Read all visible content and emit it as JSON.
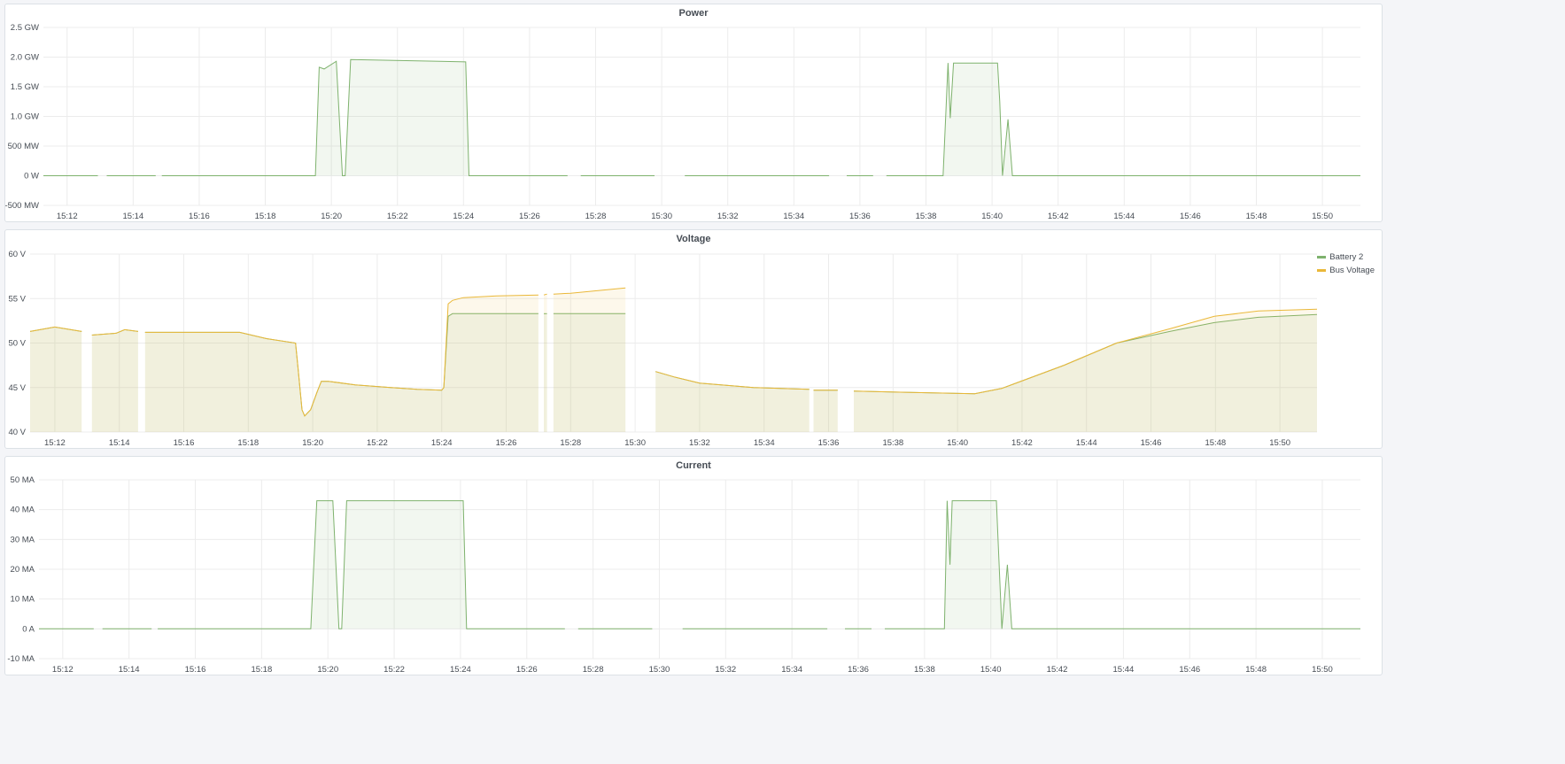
{
  "colors": {
    "green": "#7eb26d",
    "yellow": "#eab839"
  },
  "chart_data": [
    {
      "type": "area",
      "title": "Power",
      "yunit": "GW",
      "yticks": [
        "2.5 GW",
        "2.0 GW",
        "1.5 GW",
        "1.0 GW",
        "500 MW",
        "0 W",
        "-500 MW"
      ],
      "ytick_values": [
        2.5,
        2.0,
        1.5,
        1.0,
        0.5,
        0,
        -0.5
      ],
      "ylim": [
        -0.5,
        2.5
      ],
      "xlim": [
        "15:11:17",
        "15:51:09"
      ],
      "xticks": [
        "15:12",
        "15:14",
        "15:16",
        "15:18",
        "15:20",
        "15:22",
        "15:24",
        "15:26",
        "15:28",
        "15:30",
        "15:32",
        "15:34",
        "15:36",
        "15:38",
        "15:40",
        "15:42",
        "15:44",
        "15:46",
        "15:48",
        "15:50"
      ],
      "grid": true,
      "series": [
        {
          "color": "#7eb26d",
          "points": [
            [
              "15:11:17",
              0
            ],
            [
              "15:12:56",
              0
            ],
            [
              "15:13:00",
              null
            ],
            [
              "15:13:12",
              0
            ],
            [
              "15:14:41",
              0
            ],
            [
              "15:14:46",
              null
            ],
            [
              "15:14:52",
              0
            ],
            [
              "15:19:31",
              0
            ],
            [
              "15:19:38",
              1.83
            ],
            [
              "15:19:47",
              1.8
            ],
            [
              "15:20:09",
              1.93
            ],
            [
              "15:20:20",
              0
            ],
            [
              "15:20:25",
              0
            ],
            [
              "15:20:35",
              1.96
            ],
            [
              "15:24:04",
              1.92
            ],
            [
              "15:24:10",
              0
            ],
            [
              "15:27:09",
              0
            ],
            [
              "15:27:15",
              null
            ],
            [
              "15:27:33",
              0
            ],
            [
              "15:29:47",
              0
            ],
            [
              "15:30:00",
              null
            ],
            [
              "15:30:42",
              0
            ],
            [
              "15:35:04",
              0
            ],
            [
              "15:35:20",
              null
            ],
            [
              "15:35:36",
              0
            ],
            [
              "15:36:24",
              0
            ],
            [
              "15:36:35",
              null
            ],
            [
              "15:36:48",
              0
            ],
            [
              "15:38:31",
              0
            ],
            [
              "15:38:40",
              1.9
            ],
            [
              "15:38:44",
              0.97
            ],
            [
              "15:38:50",
              1.9
            ],
            [
              "15:40:10",
              1.9
            ],
            [
              "15:40:14",
              1.25
            ],
            [
              "15:40:19",
              0
            ],
            [
              "15:40:29",
              0.95
            ],
            [
              "15:40:37",
              0
            ],
            [
              "15:51:09",
              0
            ]
          ]
        }
      ]
    },
    {
      "type": "area",
      "title": "Voltage",
      "yunit": "V",
      "yticks": [
        "60 V",
        "55 V",
        "50 V",
        "45 V",
        "40 V"
      ],
      "ytick_values": [
        60,
        55,
        50,
        45,
        40
      ],
      "ylim": [
        40,
        60
      ],
      "xlim": [
        "15:11:14",
        "15:51:09"
      ],
      "xticks": [
        "15:12",
        "15:14",
        "15:16",
        "15:18",
        "15:20",
        "15:22",
        "15:24",
        "15:26",
        "15:28",
        "15:30",
        "15:32",
        "15:34",
        "15:36",
        "15:38",
        "15:40",
        "15:42",
        "15:44",
        "15:46",
        "15:48",
        "15:50"
      ],
      "grid": true,
      "legend": "right",
      "series": [
        {
          "name": "Battery 2",
          "color": "#7eb26d",
          "points": [
            [
              "15:11:14",
              51.3
            ],
            [
              "15:12:00",
              51.8
            ],
            [
              "15:12:50",
              51.3
            ],
            [
              "15:12:53",
              null
            ],
            [
              "15:13:09",
              50.9
            ],
            [
              "15:13:54",
              51.1
            ],
            [
              "15:14:10",
              51.5
            ],
            [
              "15:14:35",
              51.3
            ],
            [
              "15:14:40",
              null
            ],
            [
              "15:14:48",
              51.2
            ],
            [
              "15:17:44",
              51.2
            ],
            [
              "15:18:34",
              50.5
            ],
            [
              "15:19:28",
              50.0
            ],
            [
              "15:19:33",
              47
            ],
            [
              "15:19:40",
              42.5
            ],
            [
              "15:19:45",
              41.8
            ],
            [
              "15:19:56",
              42.5
            ],
            [
              "15:20:08",
              44.5
            ],
            [
              "15:20:16",
              45.7
            ],
            [
              "15:20:29",
              45.7
            ],
            [
              "15:21:19",
              45.3
            ],
            [
              "15:22:25",
              45.0
            ],
            [
              "15:23:14",
              44.8
            ],
            [
              "15:24:00",
              44.7
            ],
            [
              "15:24:04",
              45
            ],
            [
              "15:24:12",
              53
            ],
            [
              "15:24:20",
              53.3
            ],
            [
              "15:27:00",
              53.3
            ],
            [
              "15:27:03",
              null
            ],
            [
              "15:27:10",
              53.3
            ],
            [
              "15:27:16",
              53.3
            ],
            [
              "15:27:20",
              null
            ],
            [
              "15:27:28",
              53.3
            ],
            [
              "15:29:42",
              53.3
            ],
            [
              "15:30:00",
              null
            ],
            [
              "15:30:38",
              46.8
            ],
            [
              "15:31:12",
              46.2
            ],
            [
              "15:32:00",
              45.5
            ],
            [
              "15:33:40",
              45.0
            ],
            [
              "15:35:24",
              44.8
            ],
            [
              "15:35:28",
              null
            ],
            [
              "15:35:32",
              44.7
            ],
            [
              "15:36:17",
              44.7
            ],
            [
              "15:36:30",
              null
            ],
            [
              "15:36:47",
              44.6
            ],
            [
              "15:40:32",
              44.3
            ],
            [
              "15:41:22",
              44.9
            ],
            [
              "15:43:18",
              47.5
            ],
            [
              "15:44:56",
              50
            ],
            [
              "15:46:35",
              51.3
            ],
            [
              "15:47:58",
              52.3
            ],
            [
              "15:49:20",
              52.9
            ],
            [
              "15:51:09",
              53.2
            ]
          ]
        },
        {
          "name": "Bus Voltage",
          "color": "#eab839",
          "points": [
            [
              "15:11:14",
              51.3
            ],
            [
              "15:12:00",
              51.8
            ],
            [
              "15:12:50",
              51.3
            ],
            [
              "15:12:53",
              null
            ],
            [
              "15:13:09",
              50.9
            ],
            [
              "15:13:54",
              51.1
            ],
            [
              "15:14:10",
              51.5
            ],
            [
              "15:14:35",
              51.3
            ],
            [
              "15:14:40",
              null
            ],
            [
              "15:14:48",
              51.2
            ],
            [
              "15:17:44",
              51.2
            ],
            [
              "15:18:34",
              50.5
            ],
            [
              "15:19:28",
              50.0
            ],
            [
              "15:19:33",
              47
            ],
            [
              "15:19:40",
              42.5
            ],
            [
              "15:19:45",
              41.8
            ],
            [
              "15:19:56",
              42.5
            ],
            [
              "15:20:08",
              44.5
            ],
            [
              "15:20:16",
              45.7
            ],
            [
              "15:20:29",
              45.7
            ],
            [
              "15:21:19",
              45.3
            ],
            [
              "15:22:25",
              45.0
            ],
            [
              "15:23:14",
              44.8
            ],
            [
              "15:24:00",
              44.7
            ],
            [
              "15:24:04",
              45
            ],
            [
              "15:24:12",
              54.4
            ],
            [
              "15:24:20",
              54.8
            ],
            [
              "15:24:40",
              55.1
            ],
            [
              "15:25:42",
              55.3
            ],
            [
              "15:27:00",
              55.4
            ],
            [
              "15:27:03",
              null
            ],
            [
              "15:27:10",
              55.4
            ],
            [
              "15:27:16",
              55.5
            ],
            [
              "15:27:20",
              null
            ],
            [
              "15:27:28",
              55.5
            ],
            [
              "15:28:00",
              55.6
            ],
            [
              "15:29:42",
              56.2
            ],
            [
              "15:30:00",
              null
            ],
            [
              "15:30:38",
              46.8
            ],
            [
              "15:31:12",
              46.2
            ],
            [
              "15:32:00",
              45.5
            ],
            [
              "15:33:40",
              45.0
            ],
            [
              "15:35:24",
              44.8
            ],
            [
              "15:35:28",
              null
            ],
            [
              "15:35:32",
              44.7
            ],
            [
              "15:36:17",
              44.7
            ],
            [
              "15:36:30",
              null
            ],
            [
              "15:36:47",
              44.6
            ],
            [
              "15:40:32",
              44.3
            ],
            [
              "15:41:22",
              44.9
            ],
            [
              "15:43:18",
              47.5
            ],
            [
              "15:44:56",
              50
            ],
            [
              "15:46:35",
              51.6
            ],
            [
              "15:47:58",
              53.0
            ],
            [
              "15:49:20",
              53.6
            ],
            [
              "15:51:09",
              53.8
            ]
          ]
        }
      ]
    },
    {
      "type": "area",
      "title": "Current",
      "yunit": "MA",
      "yticks": [
        "50 MA",
        "40 MA",
        "30 MA",
        "20 MA",
        "10 MA",
        "0 A",
        "-10 MA"
      ],
      "ytick_values": [
        50,
        40,
        30,
        20,
        10,
        0,
        -10
      ],
      "ylim": [
        -10,
        50
      ],
      "xlim": [
        "15:11:17",
        "15:51:09"
      ],
      "xticks": [
        "15:12",
        "15:14",
        "15:16",
        "15:18",
        "15:20",
        "15:22",
        "15:24",
        "15:26",
        "15:28",
        "15:30",
        "15:32",
        "15:34",
        "15:36",
        "15:38",
        "15:40",
        "15:42",
        "15:44",
        "15:46",
        "15:48",
        "15:50"
      ],
      "grid": true,
      "series": [
        {
          "color": "#7eb26d",
          "points": [
            [
              "15:11:17",
              0
            ],
            [
              "15:12:56",
              0
            ],
            [
              "15:13:00",
              null
            ],
            [
              "15:13:12",
              0
            ],
            [
              "15:14:41",
              0
            ],
            [
              "15:14:46",
              null
            ],
            [
              "15:14:52",
              0
            ],
            [
              "15:19:29",
              0
            ],
            [
              "15:19:40",
              43
            ],
            [
              "15:20:09",
              43
            ],
            [
              "15:20:20",
              0
            ],
            [
              "15:20:25",
              0
            ],
            [
              "15:20:34",
              43
            ],
            [
              "15:24:05",
              43
            ],
            [
              "15:24:11",
              0
            ],
            [
              "15:27:09",
              0
            ],
            [
              "15:27:15",
              null
            ],
            [
              "15:27:33",
              0
            ],
            [
              "15:29:47",
              0
            ],
            [
              "15:30:00",
              null
            ],
            [
              "15:30:42",
              0
            ],
            [
              "15:35:04",
              0
            ],
            [
              "15:35:20",
              null
            ],
            [
              "15:35:36",
              0
            ],
            [
              "15:36:24",
              0
            ],
            [
              "15:36:35",
              null
            ],
            [
              "15:36:48",
              0
            ],
            [
              "15:38:36",
              0
            ],
            [
              "15:38:41",
              43
            ],
            [
              "15:38:46",
              21.5
            ],
            [
              "15:38:50",
              43
            ],
            [
              "15:40:10",
              43
            ],
            [
              "15:40:20",
              0
            ],
            [
              "15:40:30",
              21.5
            ],
            [
              "15:40:38",
              0
            ],
            [
              "15:51:09",
              0
            ]
          ]
        }
      ]
    }
  ]
}
